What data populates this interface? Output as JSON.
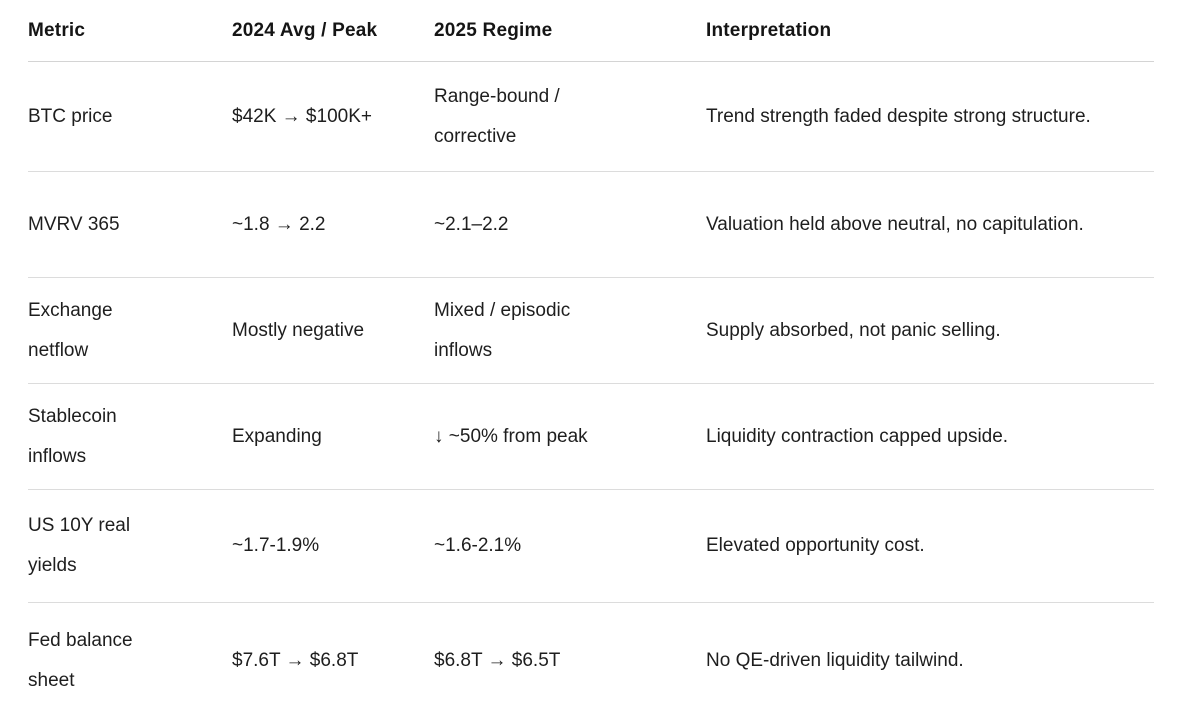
{
  "colors": {
    "background": "#ffffff",
    "text": "#1e1e1e",
    "divider": "#dcdcdc"
  },
  "table": {
    "columns": {
      "metric": "Metric",
      "avg_peak_2024": "2024 Avg / Peak",
      "regime_2025": "2025 Regime",
      "interpretation": "Interpretation"
    },
    "rows": [
      {
        "metric": "BTC price",
        "avg_peak_2024": "$42K → $100K+",
        "regime_2025": "Range-bound / corrective",
        "interpretation": "Trend strength faded despite strong structure."
      },
      {
        "metric": "MVRV 365",
        "avg_peak_2024": "~1.8 → 2.2",
        "regime_2025": "~2.1–2.2",
        "interpretation": "Valuation held above neutral, no capitulation."
      },
      {
        "metric": "Exchange netflow",
        "avg_peak_2024": "Mostly negative",
        "regime_2025": "Mixed / episodic inflows",
        "interpretation": "Supply absorbed, not panic selling."
      },
      {
        "metric": "Stablecoin inflows",
        "avg_peak_2024": "Expanding",
        "regime_2025": "↓ ~50% from peak",
        "interpretation": "Liquidity contraction capped upside."
      },
      {
        "metric": "US 10Y real yields",
        "avg_peak_2024": "~1.7-1.9%",
        "regime_2025": "~1.6-2.1%",
        "interpretation": "Elevated opportunity cost."
      },
      {
        "metric": "Fed balance sheet",
        "avg_peak_2024": "$7.6T → $6.8T",
        "regime_2025": "$6.8T → $6.5T",
        "interpretation": "No QE-driven liquidity tailwind."
      }
    ]
  }
}
